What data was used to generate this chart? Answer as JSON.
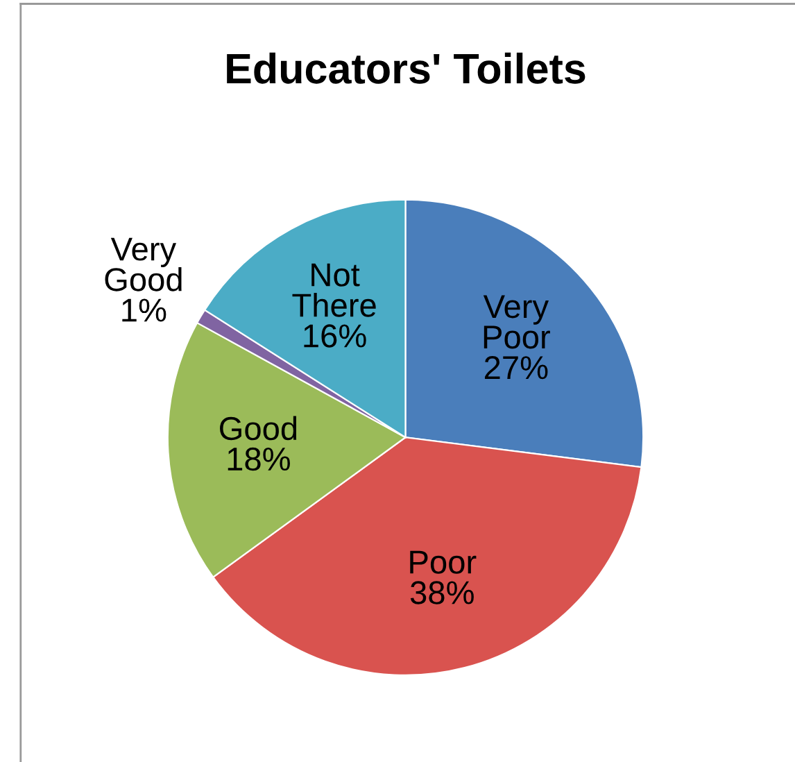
{
  "chart_data": {
    "type": "pie",
    "title": "Educators' Toilets",
    "categories": [
      "Very Poor",
      "Poor",
      "Good",
      "Very Good",
      "Not There"
    ],
    "values": [
      27,
      38,
      18,
      1,
      16
    ],
    "value_labels": [
      "27%",
      "38%",
      "18%",
      "1%",
      "16%"
    ],
    "colors": [
      "#4a7ebb",
      "#d9534f",
      "#9bbb59",
      "#8064a2",
      "#4bacc6"
    ],
    "legend": false
  }
}
